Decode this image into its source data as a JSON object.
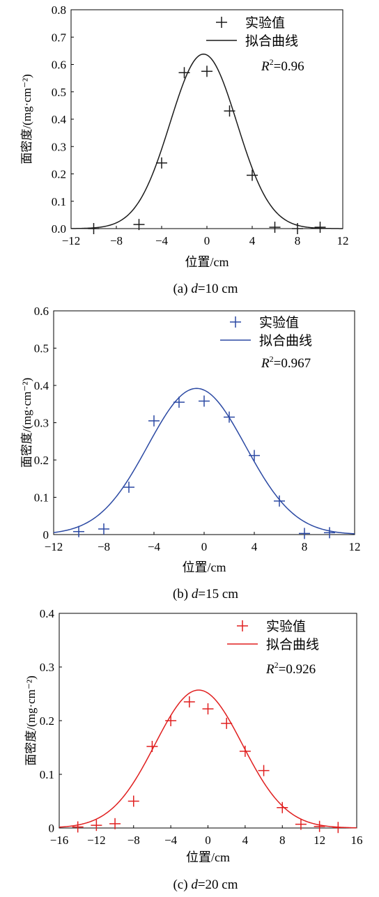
{
  "chart_data": [
    {
      "type": "scatter",
      "panel_label": "(a) ",
      "d_symbol": "d",
      "d_value": "=10 cm",
      "xlabel": "位置/cm",
      "ylabel": "面密度/(mg·cm⁻²)",
      "xlim": [
        -12,
        12
      ],
      "ylim": [
        0,
        0.8
      ],
      "xticks": [
        "−12",
        "−8",
        "−4",
        "0",
        "4",
        "8",
        "12"
      ],
      "yticks": [
        "0.0",
        "0.1",
        "0.2",
        "0.3",
        "0.4",
        "0.5",
        "0.6",
        "0.7",
        "0.8"
      ],
      "color": "#1a1a1a",
      "legend": {
        "points": "实验值",
        "line": "拟合曲线",
        "position": "top-right"
      },
      "r2_symbol": "R",
      "r2_sup": "2",
      "r2_value": "=0.96",
      "fit": {
        "amplitude": 0.638,
        "mean": -0.3,
        "sigma": 2.95
      },
      "points": [
        [
          -10,
          0.0
        ],
        [
          -6,
          0.015
        ],
        [
          -4,
          0.24
        ],
        [
          -2,
          0.57
        ],
        [
          0,
          0.575
        ],
        [
          2,
          0.43
        ],
        [
          4,
          0.195
        ],
        [
          6,
          0.005
        ],
        [
          8,
          0.0
        ],
        [
          10,
          0.005
        ]
      ]
    },
    {
      "type": "scatter",
      "panel_label": "(b) ",
      "d_symbol": "d",
      "d_value": "=15 cm",
      "xlabel": "位置/cm",
      "ylabel": "面密度/(mg·cm⁻²)",
      "xlim": [
        -12,
        12
      ],
      "ylim": [
        0,
        0.6
      ],
      "xticks": [
        "−12",
        "−8",
        "−4",
        "0",
        "4",
        "8",
        "12"
      ],
      "yticks": [
        "0",
        "0.1",
        "0.2",
        "0.3",
        "0.4",
        "0.5",
        "0.6"
      ],
      "color": "#2b49a3",
      "legend": {
        "points": "实验值",
        "line": "拟合曲线",
        "position": "top-right"
      },
      "r2_symbol": "R",
      "r2_sup": "2",
      "r2_value": "=0.967",
      "fit": {
        "amplitude": 0.392,
        "mean": -0.6,
        "sigma": 3.9
      },
      "points": [
        [
          -10,
          0.008
        ],
        [
          -8,
          0.015
        ],
        [
          -6,
          0.127
        ],
        [
          -4,
          0.305
        ],
        [
          -2,
          0.355
        ],
        [
          0,
          0.358
        ],
        [
          2,
          0.315
        ],
        [
          4,
          0.212
        ],
        [
          6,
          0.09
        ],
        [
          8,
          0.003
        ],
        [
          10,
          0.005
        ]
      ]
    },
    {
      "type": "scatter",
      "panel_label": "(c) ",
      "d_symbol": "d",
      "d_value": "=20 cm",
      "xlabel": "位置/cm",
      "ylabel": "面密度/(mg·cm⁻²)",
      "xlim": [
        -16,
        16
      ],
      "ylim": [
        0,
        0.4
      ],
      "xticks": [
        "−16",
        "−12",
        "−8",
        "−4",
        "0",
        "4",
        "8",
        "12",
        "16"
      ],
      "yticks": [
        "0",
        "0.1",
        "0.2",
        "0.3",
        "0.4"
      ],
      "color": "#e01f1f",
      "legend": {
        "points": "实验值",
        "line": "拟合曲线",
        "position": "top-right"
      },
      "r2_symbol": "R",
      "r2_sup": "2",
      "r2_value": "=0.926",
      "fit": {
        "amplitude": 0.257,
        "mean": -1.0,
        "sigma": 4.7
      },
      "points": [
        [
          -14,
          0.002
        ],
        [
          -12,
          0.005
        ],
        [
          -10,
          0.008
        ],
        [
          -8,
          0.05
        ],
        [
          -6,
          0.152
        ],
        [
          -4,
          0.2
        ],
        [
          -2,
          0.235
        ],
        [
          0,
          0.222
        ],
        [
          2,
          0.195
        ],
        [
          4,
          0.143
        ],
        [
          6,
          0.107
        ],
        [
          8,
          0.038
        ],
        [
          10,
          0.007
        ],
        [
          12,
          0.003
        ],
        [
          14,
          0.001
        ]
      ]
    }
  ]
}
